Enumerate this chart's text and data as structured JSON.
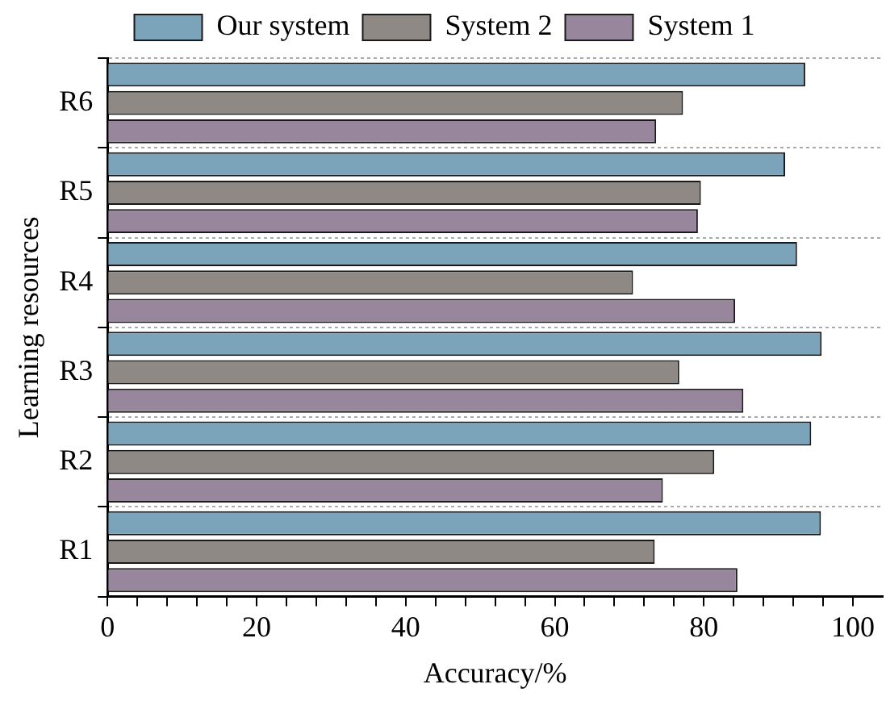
{
  "chart_data": {
    "type": "bar",
    "orientation": "horizontal",
    "xlabel": "Accuracy/%",
    "ylabel": "Learning resources",
    "categories": [
      "R6",
      "R5",
      "R4",
      "R3",
      "R2",
      "R1"
    ],
    "series": [
      {
        "name": "Our system",
        "color": "#7ba3b9",
        "values": [
          93.6,
          90.9,
          92.5,
          95.8,
          94.4,
          95.7
        ]
      },
      {
        "name": "System 2",
        "color": "#8e8985",
        "values": [
          77.2,
          79.6,
          70.5,
          76.7,
          81.4,
          73.4
        ]
      },
      {
        "name": "System 1",
        "color": "#97869c",
        "values": [
          73.6,
          79.2,
          84.2,
          85.3,
          74.5,
          84.5
        ]
      }
    ],
    "xlim": [
      0,
      104
    ],
    "xticks": [
      0,
      {
        "value": 4,
        "label": null
      },
      {
        "value": 8,
        "label": null
      },
      {
        "value": 12,
        "label": null
      },
      {
        "value": 16,
        "label": null
      },
      20,
      {
        "value": 24,
        "label": null
      },
      {
        "value": 28,
        "label": null
      },
      {
        "value": 32,
        "label": null
      },
      {
        "value": 36,
        "label": null
      },
      40,
      {
        "value": 44,
        "label": null
      },
      {
        "value": 48,
        "label": null
      },
      {
        "value": 52,
        "label": null
      },
      {
        "value": 56,
        "label": null
      },
      60,
      {
        "value": 64,
        "label": null
      },
      {
        "value": 68,
        "label": null
      },
      {
        "value": 72,
        "label": null
      },
      {
        "value": 76,
        "label": null
      },
      80,
      {
        "value": 84,
        "label": null
      },
      {
        "value": 88,
        "label": null
      },
      {
        "value": 92,
        "label": null
      },
      {
        "value": 96,
        "label": null
      },
      100
    ],
    "grid": "y",
    "legend": "top"
  }
}
